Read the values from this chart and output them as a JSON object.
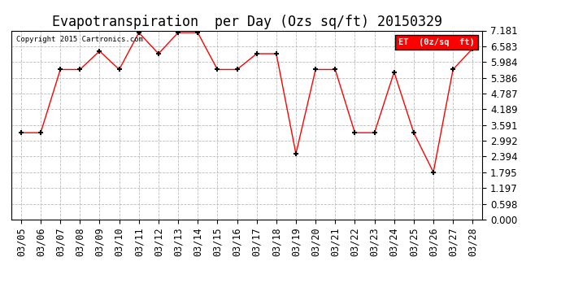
{
  "title": "Evapotranspiration  per Day (Ozs sq/ft) 20150329",
  "copyright": "Copyright 2015 Cartronics.com",
  "legend_label": "ET  (0z/sq  ft)",
  "dates": [
    "03/05",
    "03/06",
    "03/07",
    "03/08",
    "03/09",
    "03/10",
    "03/11",
    "03/12",
    "03/13",
    "03/14",
    "03/15",
    "03/16",
    "03/17",
    "03/18",
    "03/19",
    "03/20",
    "03/21",
    "03/22",
    "03/23",
    "03/24",
    "03/25",
    "03/26",
    "03/27",
    "03/28"
  ],
  "values": [
    3.3,
    3.3,
    5.7,
    5.7,
    6.4,
    5.7,
    7.1,
    6.3,
    7.1,
    7.1,
    5.7,
    5.7,
    6.3,
    6.3,
    2.5,
    5.7,
    5.7,
    3.3,
    3.3,
    5.6,
    3.3,
    1.8,
    5.7,
    6.5
  ],
  "ymin": 0.0,
  "ymax": 7.181,
  "yticks": [
    0.0,
    0.598,
    1.197,
    1.795,
    2.394,
    2.992,
    3.591,
    4.189,
    4.787,
    5.386,
    5.984,
    6.583,
    7.181
  ],
  "line_color": "red",
  "marker": "+",
  "marker_color": "black",
  "bg_color": "white",
  "grid_color": "#bbbbbb",
  "title_fontsize": 12,
  "tick_fontsize": 8.5,
  "legend_bg": "red",
  "legend_text_color": "white"
}
